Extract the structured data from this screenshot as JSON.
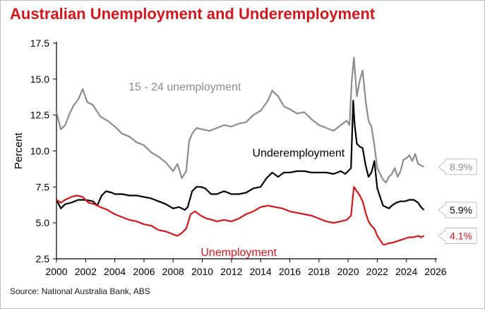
{
  "title": "Australian Unemployment and Underemployment",
  "source": "Source: National Australia Bank, ABS",
  "chart_data": {
    "type": "line",
    "title": "Australian Unemployment and Underemployment",
    "xlabel": "",
    "ylabel": "Percent",
    "xlim": [
      2000,
      2026
    ],
    "ylim": [
      2.5,
      17.5
    ],
    "x_ticks": [
      "2000",
      "2002",
      "2004",
      "2006",
      "2008",
      "2010",
      "2012",
      "2014",
      "2016",
      "2018",
      "2020",
      "2022",
      "2024",
      "2026"
    ],
    "y_ticks": [
      "2.5",
      "5.0",
      "7.5",
      "10.0",
      "12.5",
      "15.0",
      "17.5"
    ],
    "grid": false,
    "series": [
      {
        "name": "15 - 24 unemployment",
        "color": "#8c8c8c",
        "end_label": "8.9%",
        "x": [
          2000.0,
          2000.3,
          2000.6,
          2000.9,
          2001.2,
          2001.5,
          2001.8,
          2002.1,
          2002.5,
          2003.0,
          2003.5,
          2004.0,
          2004.5,
          2005.0,
          2005.5,
          2006.0,
          2006.5,
          2007.0,
          2007.5,
          2008.0,
          2008.3,
          2008.6,
          2008.9,
          2009.1,
          2009.3,
          2009.6,
          2010.0,
          2010.5,
          2011.0,
          2011.5,
          2012.0,
          2012.5,
          2013.0,
          2013.5,
          2014.0,
          2014.5,
          2014.8,
          2015.2,
          2015.6,
          2016.0,
          2016.5,
          2017.0,
          2017.5,
          2018.0,
          2018.5,
          2019.0,
          2019.5,
          2019.9,
          2020.1,
          2020.25,
          2020.4,
          2020.6,
          2020.8,
          2021.0,
          2021.2,
          2021.4,
          2021.6,
          2021.8,
          2022.0,
          2022.2,
          2022.4,
          2022.6,
          2022.8,
          2023.0,
          2023.2,
          2023.4,
          2023.6,
          2023.8,
          2024.0,
          2024.2,
          2024.4,
          2024.6,
          2024.8,
          2025.0,
          2025.2
        ],
        "y": [
          12.7,
          11.5,
          11.8,
          12.6,
          13.2,
          13.6,
          14.3,
          13.4,
          13.2,
          12.4,
          12.1,
          11.7,
          11.2,
          11.0,
          10.6,
          10.4,
          9.9,
          9.6,
          9.2,
          8.6,
          9.1,
          8.1,
          8.6,
          10.7,
          11.2,
          11.6,
          11.5,
          11.4,
          11.6,
          11.8,
          11.7,
          11.9,
          12.0,
          12.5,
          12.8,
          13.5,
          14.2,
          13.8,
          13.1,
          12.9,
          12.6,
          12.7,
          12.2,
          11.8,
          11.6,
          11.4,
          11.8,
          12.1,
          11.8,
          14.8,
          16.5,
          13.8,
          14.9,
          15.6,
          13.5,
          12.1,
          11.7,
          10.4,
          8.8,
          8.4,
          8.0,
          7.8,
          8.2,
          8.4,
          8.8,
          8.2,
          8.6,
          9.4,
          9.5,
          9.7,
          9.3,
          9.8,
          9.1,
          9.0,
          8.9
        ]
      },
      {
        "name": "Underemployment",
        "color": "#000000",
        "end_label": "5.9%",
        "x": [
          2000.0,
          2000.3,
          2000.6,
          2001.0,
          2001.5,
          2002.0,
          2002.5,
          2002.8,
          2003.1,
          2003.4,
          2003.8,
          2004.0,
          2004.5,
          2005.0,
          2005.5,
          2006.0,
          2006.5,
          2007.0,
          2007.5,
          2008.0,
          2008.4,
          2008.8,
          2009.0,
          2009.3,
          2009.6,
          2009.9,
          2010.2,
          2010.6,
          2011.0,
          2011.5,
          2012.0,
          2012.5,
          2013.0,
          2013.5,
          2014.0,
          2014.4,
          2014.8,
          2015.2,
          2015.6,
          2016.0,
          2016.5,
          2017.0,
          2017.5,
          2018.0,
          2018.5,
          2019.0,
          2019.5,
          2019.8,
          2020.0,
          2020.2,
          2020.35,
          2020.45,
          2020.6,
          2020.8,
          2021.0,
          2021.2,
          2021.4,
          2021.6,
          2021.8,
          2022.0,
          2022.2,
          2022.4,
          2022.6,
          2022.8,
          2023.0,
          2023.3,
          2023.6,
          2023.9,
          2024.2,
          2024.5,
          2024.8,
          2025.0,
          2025.2
        ],
        "y": [
          6.6,
          6.0,
          6.3,
          6.4,
          6.6,
          6.6,
          6.5,
          6.2,
          6.9,
          7.2,
          7.1,
          7.0,
          7.0,
          6.9,
          6.9,
          6.8,
          6.7,
          6.5,
          6.3,
          6.0,
          6.1,
          5.9,
          6.1,
          7.2,
          7.5,
          7.5,
          7.4,
          7.0,
          7.0,
          7.2,
          7.0,
          7.0,
          7.1,
          7.4,
          7.5,
          8.1,
          8.5,
          8.2,
          8.5,
          8.5,
          8.6,
          8.6,
          8.5,
          8.5,
          8.5,
          8.4,
          8.6,
          8.4,
          8.6,
          8.8,
          13.5,
          11.8,
          10.5,
          10.3,
          10.2,
          9.0,
          8.2,
          8.5,
          9.3,
          7.4,
          6.8,
          6.2,
          6.1,
          6.0,
          6.2,
          6.4,
          6.5,
          6.5,
          6.6,
          6.6,
          6.4,
          6.1,
          5.9
        ]
      },
      {
        "name": "Unemployment",
        "color": "#d4151b",
        "end_label": "4.1%",
        "x": [
          2000.0,
          2000.3,
          2000.6,
          2001.0,
          2001.4,
          2001.8,
          2002.2,
          2002.6,
          2003.0,
          2003.5,
          2004.0,
          2004.5,
          2005.0,
          2005.5,
          2006.0,
          2006.5,
          2007.0,
          2007.5,
          2008.0,
          2008.3,
          2008.6,
          2008.9,
          2009.2,
          2009.5,
          2009.9,
          2010.3,
          2010.7,
          2011.0,
          2011.5,
          2012.0,
          2012.5,
          2013.0,
          2013.5,
          2014.0,
          2014.5,
          2015.0,
          2015.5,
          2016.0,
          2016.5,
          2017.0,
          2017.5,
          2018.0,
          2018.5,
          2019.0,
          2019.5,
          2019.9,
          2020.2,
          2020.4,
          2020.6,
          2020.8,
          2021.0,
          2021.2,
          2021.4,
          2021.6,
          2021.8,
          2022.0,
          2022.2,
          2022.4,
          2022.6,
          2022.8,
          2023.0,
          2023.3,
          2023.6,
          2023.9,
          2024.2,
          2024.5,
          2024.8,
          2025.0,
          2025.2
        ],
        "y": [
          6.6,
          6.4,
          6.6,
          6.8,
          6.9,
          6.8,
          6.4,
          6.3,
          6.1,
          5.9,
          5.6,
          5.4,
          5.2,
          5.1,
          4.9,
          4.8,
          4.5,
          4.4,
          4.2,
          4.1,
          4.3,
          4.6,
          5.6,
          5.8,
          5.5,
          5.3,
          5.2,
          5.1,
          5.2,
          5.1,
          5.3,
          5.6,
          5.8,
          6.1,
          6.2,
          6.1,
          6.0,
          5.8,
          5.7,
          5.6,
          5.5,
          5.3,
          5.1,
          5.0,
          5.1,
          5.2,
          5.5,
          7.5,
          7.2,
          6.9,
          6.5,
          5.7,
          5.1,
          4.8,
          4.6,
          4.1,
          3.8,
          3.5,
          3.5,
          3.6,
          3.6,
          3.7,
          3.8,
          3.9,
          4.0,
          4.0,
          4.1,
          4.0,
          4.1
        ]
      }
    ],
    "annotations": [
      {
        "text": "15 - 24 unemployment",
        "x": 2008.8,
        "y": 14.2,
        "color": "#8c8c8c"
      },
      {
        "text": "Underemployment",
        "x": 2016.6,
        "y": 9.6,
        "color": "#000000"
      },
      {
        "text": "Unemployment",
        "x": 2012.5,
        "y": 2.7,
        "color": "#d4151b"
      }
    ]
  }
}
